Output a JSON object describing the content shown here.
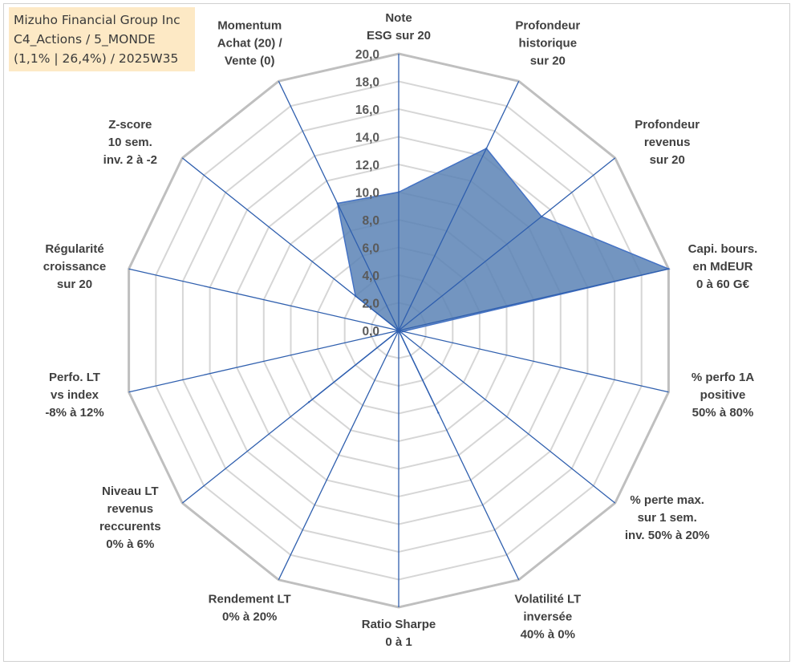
{
  "header": {
    "line1": "Mizuho Financial Group Inc",
    "line2": "C4_Actions / 5_MONDE",
    "line3": "(1,1% | 26,4%) / 2025W35"
  },
  "chart_data": {
    "type": "radar",
    "rmin": 0,
    "rmax": 20,
    "tick_step": 2,
    "tick_labels": [
      "0,0",
      "2,0",
      "4,0",
      "6,0",
      "8,0",
      "10,0",
      "12,0",
      "14,0",
      "16,0",
      "18,0",
      "20,0"
    ],
    "grid": true,
    "axes": [
      {
        "label": [
          "Note",
          "ESG sur 20"
        ]
      },
      {
        "label": [
          "Profondeur",
          "historique",
          "sur 20"
        ]
      },
      {
        "label": [
          "Profondeur",
          "revenus",
          "sur 20"
        ]
      },
      {
        "label": [
          "Capi. bours.",
          "en MdEUR",
          "0 à 60 G€"
        ]
      },
      {
        "label": [
          "% perfo 1A",
          "positive",
          "50% à 80%"
        ]
      },
      {
        "label": [
          "% perte max.",
          "sur 1 sem.",
          "inv. 50% à 20%"
        ]
      },
      {
        "label": [
          "Volatilité LT",
          "inversée",
          "40% à 0%"
        ]
      },
      {
        "label": [
          "Ratio Sharpe",
          "0 à 1"
        ]
      },
      {
        "label": [
          "Rendement LT",
          "0% à 20%"
        ]
      },
      {
        "label": [
          "Niveau LT",
          "revenus",
          "reccurents",
          "0% à 6%"
        ]
      },
      {
        "label": [
          "Perfo. LT",
          "vs index",
          "-8% à 12%"
        ]
      },
      {
        "label": [
          "Régularité",
          "croissance",
          "sur 20"
        ]
      },
      {
        "label": [
          "Z-score",
          "10 sem.",
          "inv. 2 à -2"
        ]
      },
      {
        "label": [
          "Momentum",
          "Achat (20) /",
          "Vente (0)"
        ]
      }
    ],
    "series": [
      {
        "values": [
          10.0,
          14.6,
          13.2,
          20.0,
          0.3,
          0.0,
          6.6,
          0.0,
          0.0,
          8.3,
          0.0,
          0.0,
          4.0,
          10.2
        ],
        "color": "#5b82b5",
        "edge_color": "#4472c4"
      }
    ]
  }
}
